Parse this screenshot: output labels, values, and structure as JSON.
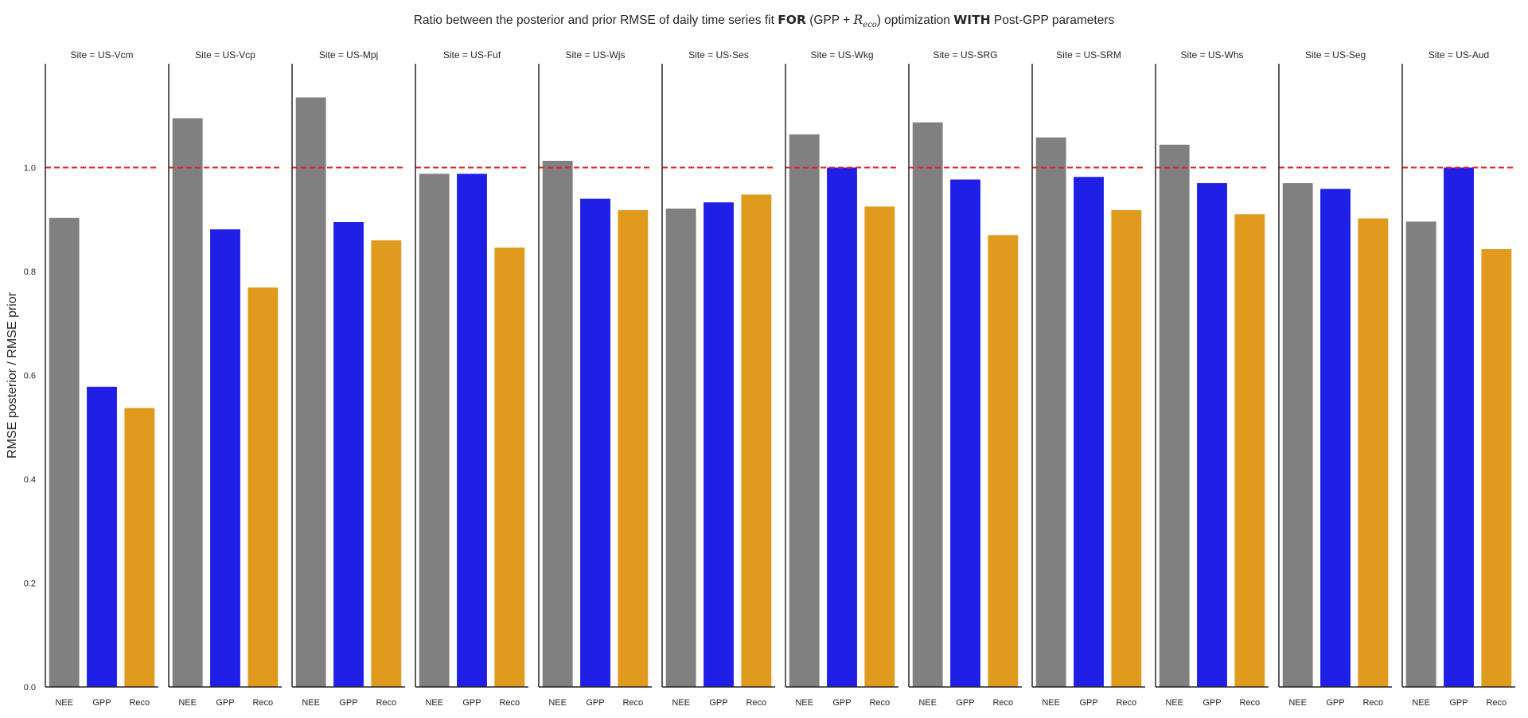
{
  "title": {
    "prefix": "Ratio between the posterior and prior RMSE of daily time series fit ",
    "bold1": "FOR",
    "mid1": " (GPP + ",
    "r": "R",
    "sub": "eco",
    "mid2": ") optimization ",
    "bold2": "WITH",
    "suffix": " Post-GPP parameters"
  },
  "colors": {
    "NEE": "#808080",
    "GPP": "#1f1fe6",
    "Reco": "#e09b1f",
    "ref_line": "#e0231f"
  },
  "chart_data": {
    "type": "bar",
    "categories": [
      "NEE",
      "GPP",
      "Reco"
    ],
    "ylabel": "RMSE posterior / RMSE prior",
    "ylim": [
      0,
      1.2
    ],
    "yticks": [
      0.0,
      0.2,
      0.4,
      0.6,
      0.8,
      1.0
    ],
    "ytick_labels": [
      "0.0",
      "0.2",
      "0.4",
      "0.6",
      "0.8",
      "1.0"
    ],
    "reference_line": 1.0,
    "facet_label_prefix": "Site = ",
    "facets": [
      {
        "site": "US-Vcm",
        "values": [
          0.903,
          0.578,
          0.537
        ]
      },
      {
        "site": "US-Vcp",
        "values": [
          1.095,
          0.881,
          0.769
        ]
      },
      {
        "site": "US-Mpj",
        "values": [
          1.135,
          0.895,
          0.86
        ]
      },
      {
        "site": "US-Fuf",
        "values": [
          0.988,
          0.988,
          0.846
        ]
      },
      {
        "site": "US-Wjs",
        "values": [
          1.013,
          0.94,
          0.918
        ]
      },
      {
        "site": "US-Ses",
        "values": [
          0.921,
          0.933,
          0.948
        ]
      },
      {
        "site": "US-Wkg",
        "values": [
          1.064,
          1.0,
          0.925
        ]
      },
      {
        "site": "US-SRG",
        "values": [
          1.087,
          0.977,
          0.87
        ]
      },
      {
        "site": "US-SRM",
        "values": [
          1.058,
          0.982,
          0.918
        ]
      },
      {
        "site": "US-Whs",
        "values": [
          1.044,
          0.97,
          0.91
        ]
      },
      {
        "site": "US-Seg",
        "values": [
          0.97,
          0.959,
          0.902
        ]
      },
      {
        "site": "US-Aud",
        "values": [
          0.896,
          1.0,
          0.843
        ]
      }
    ]
  }
}
